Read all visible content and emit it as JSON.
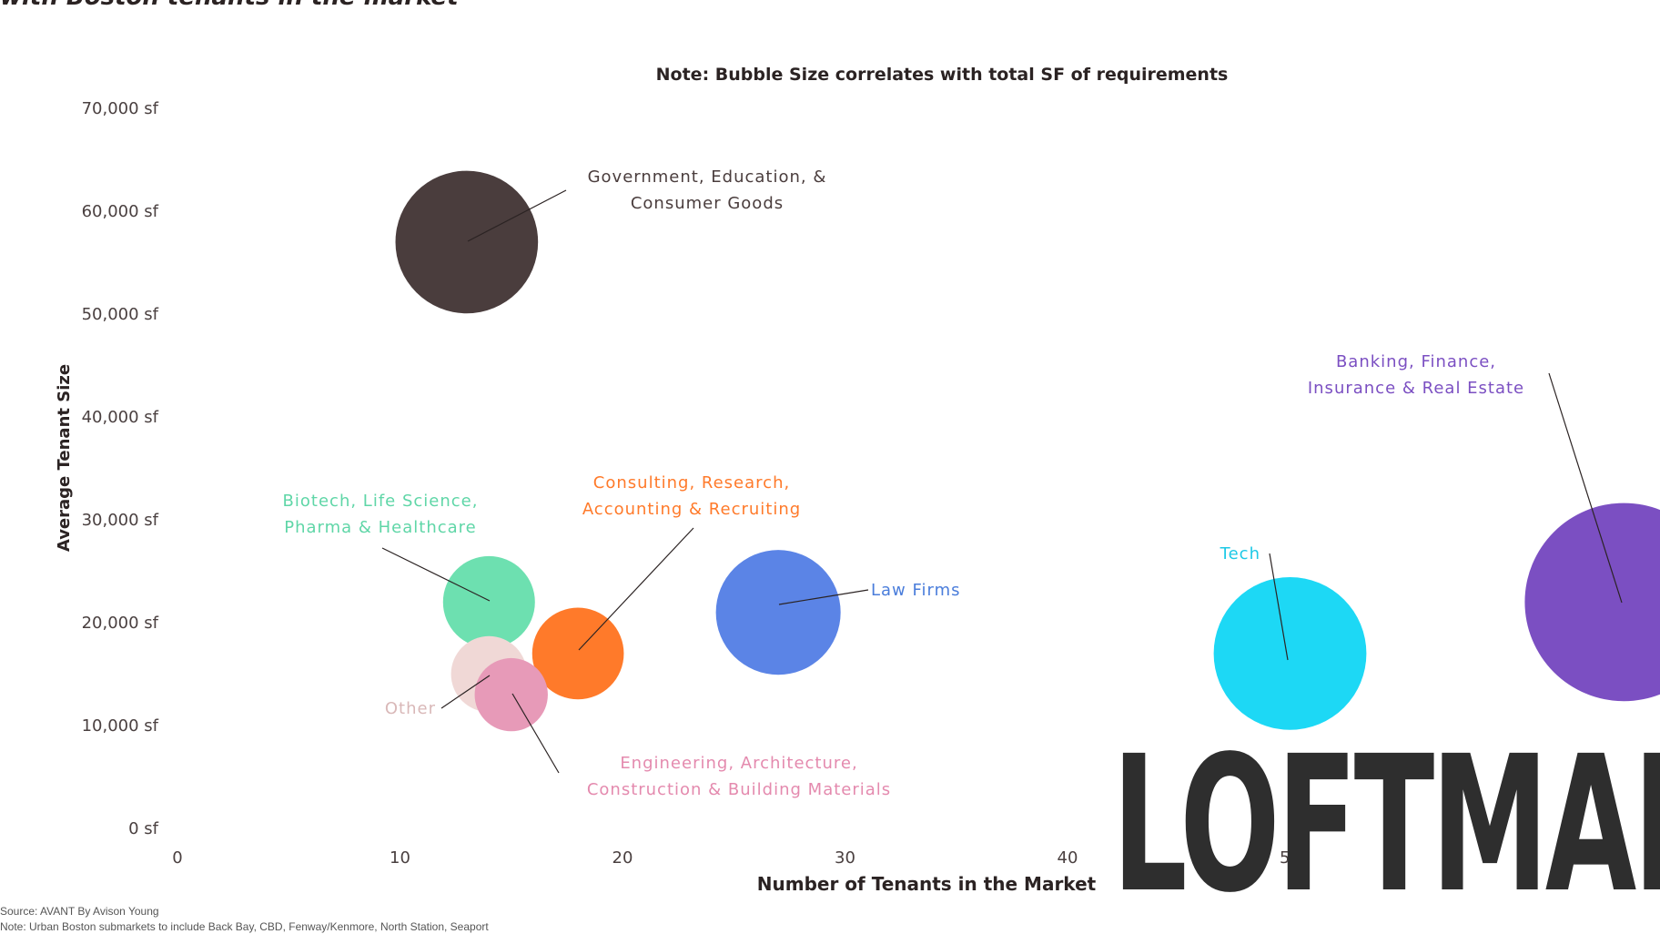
{
  "title": "with Boston tenants in the market",
  "footer": {
    "source": "Source: AVANT By Avison Young",
    "note": "Note: Urban Boston submarkets to include Back Bay, CBD, Fenway/Kenmore, North Station, Seaport"
  },
  "logo": {
    "text": "LOFTMAP"
  },
  "chart_data": {
    "type": "scatter",
    "subtype": "bubble",
    "note": "Note: Bubble Size correlates with total SF of requirements",
    "xlabel": "Number of Tenants in the Market",
    "ylabel": "Average Tenant Size",
    "xlim": [
      0,
      65
    ],
    "ylim": [
      0,
      70000
    ],
    "x_ticks": [
      "0",
      "10",
      "20",
      "30",
      "40",
      "50"
    ],
    "y_ticks": [
      "0 sf",
      "10,000 sf",
      "20,000 sf",
      "30,000 sf",
      "40,000 sf",
      "50,000 sf",
      "60,000 sf",
      "70,000 sf"
    ],
    "grid": false,
    "legend": "none",
    "series": [
      {
        "name": "Government, Education, & Consumer Goods",
        "label_lines": [
          "Government, Education, &",
          "Consumer Goods"
        ],
        "x": 13,
        "y": 57000,
        "size": 741000,
        "color": "#4a3d3d",
        "label_color": "#4a3d3d"
      },
      {
        "name": "Biotech, Life Science, Pharma & Healthcare",
        "label_lines": [
          "Biotech, Life Science,",
          "Pharma & Healthcare"
        ],
        "x": 14,
        "y": 22000,
        "size": 308000,
        "color": "#6de0b0",
        "label_color": "#5fd6a7"
      },
      {
        "name": "Consulting, Research, Accounting & Recruiting",
        "label_lines": [
          "Consulting, Research,",
          "Accounting & Recruiting"
        ],
        "x": 18,
        "y": 17000,
        "size": 306000,
        "color": "#ff7a2a",
        "label_color": "#ff7a2a"
      },
      {
        "name": "Law Firms",
        "label_lines": [
          "Law Firms"
        ],
        "x": 27,
        "y": 21000,
        "size": 567000,
        "color": "#5b84e6",
        "label_color": "#4a7ddb"
      },
      {
        "name": "Other",
        "label_lines": [
          "Other"
        ],
        "x": 14,
        "y": 15000,
        "size": 210000,
        "color": "#f0d8d6",
        "label_color": "#d9b8b8"
      },
      {
        "name": "Engineering, Architecture, Construction & Building Materials",
        "label_lines": [
          "Engineering, Architecture,",
          "Construction & Building Materials"
        ],
        "x": 15,
        "y": 13000,
        "size": 195000,
        "color": "#e79ab8",
        "label_color": "#e48aae"
      },
      {
        "name": "Tech",
        "label_lines": [
          "Tech"
        ],
        "x": 50,
        "y": 17000,
        "size": 850000,
        "color": "#1dd8f5",
        "label_color": "#1dc9e6"
      },
      {
        "name": "Banking, Finance, Insurance & Real Estate",
        "label_lines": [
          "Banking, Finance,",
          "Insurance & Real Estate"
        ],
        "x": 65,
        "y": 22000,
        "size": 1430000,
        "color": "#7b4fc2",
        "label_color": "#7b4fc2"
      }
    ]
  }
}
